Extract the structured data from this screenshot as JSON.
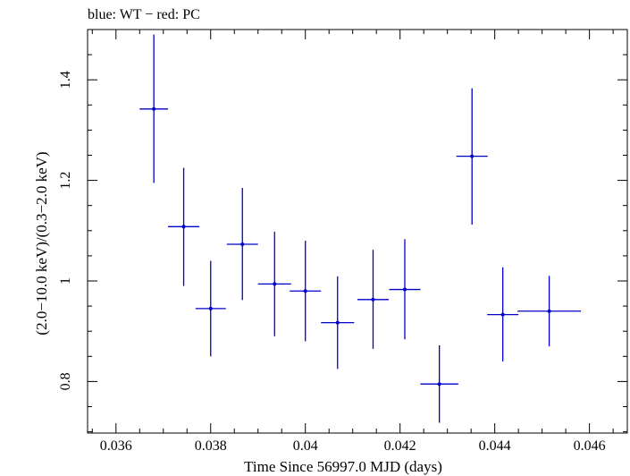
{
  "chart_data": {
    "type": "scatter",
    "title": "blue: WT − red: PC",
    "xlabel": "Time Since 56997.0 MJD (days)",
    "ylabel": "(2.0−10.0 keV)/(0.3−2.0 keV)",
    "xlim": [
      0.0354,
      0.0468
    ],
    "ylim": [
      0.6975,
      1.5
    ],
    "x_ticks": [
      0.036,
      0.038,
      0.04,
      0.042,
      0.044,
      0.046
    ],
    "x_tick_labels": [
      "0.036",
      "0.038",
      "0.04",
      "0.042",
      "0.044",
      "0.046"
    ],
    "y_ticks": [
      0.8,
      1.0,
      1.2,
      1.4
    ],
    "y_tick_labels": [
      "0.8",
      "1",
      "1.2",
      "1.4"
    ],
    "grid": false,
    "colors": {
      "WT": "#0000cc",
      "axes": "#000000"
    },
    "series": [
      {
        "name": "WT",
        "points": [
          {
            "x": 0.0368,
            "xerr": 0.0003,
            "y": 1.342,
            "ylo": 1.195,
            "yhi": 1.49
          },
          {
            "x": 0.03743,
            "xerr": 0.00033,
            "y": 1.108,
            "ylo": 0.99,
            "yhi": 1.225
          },
          {
            "x": 0.038,
            "xerr": 0.00032,
            "y": 0.945,
            "ylo": 0.85,
            "yhi": 1.04
          },
          {
            "x": 0.03867,
            "xerr": 0.00033,
            "y": 1.073,
            "ylo": 0.962,
            "yhi": 1.185
          },
          {
            "x": 0.03935,
            "xerr": 0.00035,
            "y": 0.994,
            "ylo": 0.89,
            "yhi": 1.098
          },
          {
            "x": 0.04,
            "xerr": 0.00033,
            "y": 0.98,
            "ylo": 0.88,
            "yhi": 1.08
          },
          {
            "x": 0.04068,
            "xerr": 0.00035,
            "y": 0.917,
            "ylo": 0.825,
            "yhi": 1.009
          },
          {
            "x": 0.04143,
            "xerr": 0.00033,
            "y": 0.963,
            "ylo": 0.865,
            "yhi": 1.062
          },
          {
            "x": 0.0421,
            "xerr": 0.00033,
            "y": 0.983,
            "ylo": 0.884,
            "yhi": 1.083
          },
          {
            "x": 0.04283,
            "xerr": 0.0004,
            "y": 0.795,
            "ylo": 0.718,
            "yhi": 0.872
          },
          {
            "x": 0.04352,
            "xerr": 0.00033,
            "y": 1.248,
            "ylo": 1.112,
            "yhi": 1.383
          },
          {
            "x": 0.04417,
            "xerr": 0.00033,
            "y": 0.933,
            "ylo": 0.84,
            "yhi": 1.027
          },
          {
            "x": 0.04515,
            "xerr": 0.00067,
            "y": 0.94,
            "ylo": 0.87,
            "yhi": 1.01
          }
        ]
      }
    ]
  }
}
